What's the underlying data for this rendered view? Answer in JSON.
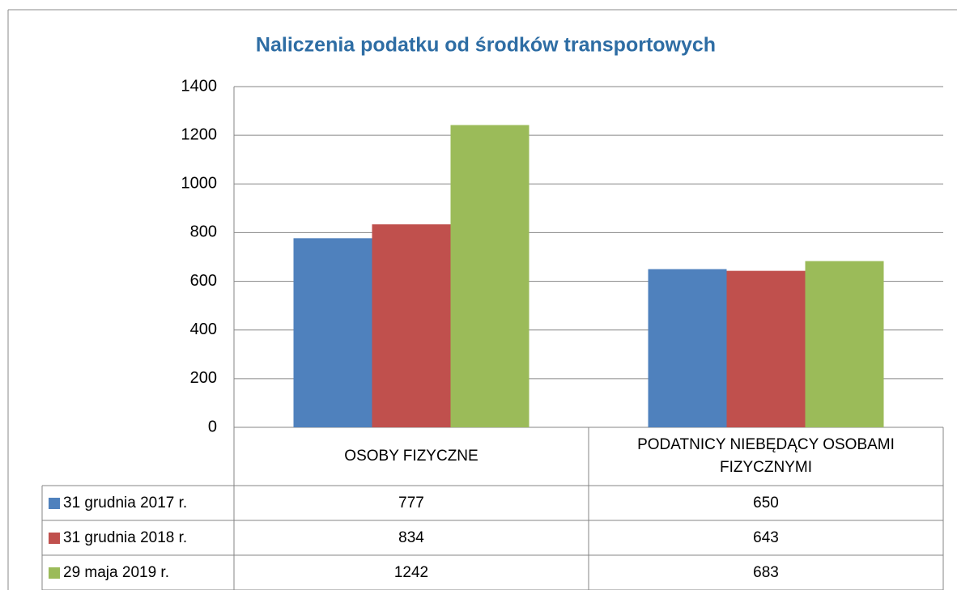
{
  "chart_data": {
    "type": "bar",
    "title": "Naliczenia podatku od środków transportowych",
    "categories": [
      "OSOBY FIZYCZNE",
      "PODATNICY NIEBĘDĄCY OSOBAMI FIZYCZNYMI"
    ],
    "series": [
      {
        "name": "31 grudnia 2017 r.",
        "color": "#4f81bd",
        "values": [
          777,
          650
        ]
      },
      {
        "name": "31 grudnia 2018 r.",
        "color": "#c0504d",
        "values": [
          834,
          643
        ]
      },
      {
        "name": "29 maja 2019 r.",
        "color": "#9bbb59",
        "values": [
          1242,
          683
        ]
      }
    ],
    "ylim": [
      0,
      1400
    ],
    "yticks": [
      0,
      200,
      400,
      600,
      800,
      1000,
      1200,
      1400
    ],
    "grid": true
  }
}
